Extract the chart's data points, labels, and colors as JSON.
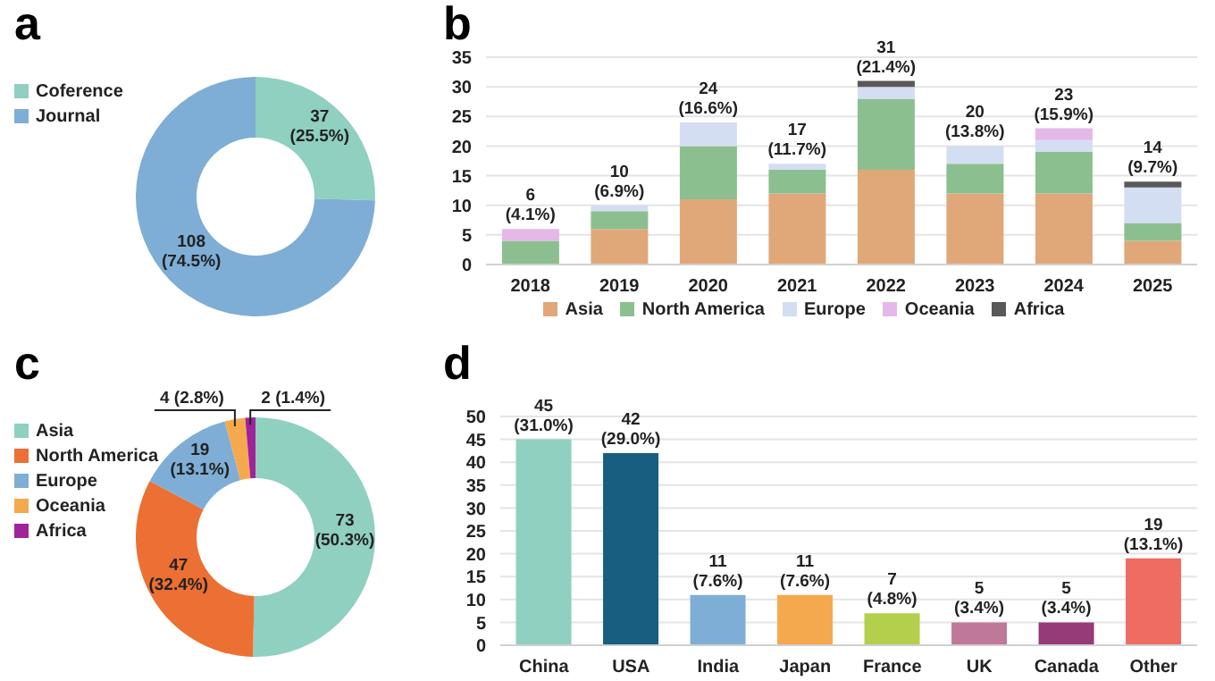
{
  "chart_data": [
    {
      "type": "donut",
      "title": "a",
      "categories": [
        "Coference",
        "Journal"
      ],
      "values": [
        37,
        108
      ],
      "colors": [
        "#8fd0c0",
        "#7eaed6"
      ],
      "value_labels": [
        "37 (25.5%)",
        "108 (74.5%)"
      ],
      "legend": "top left"
    },
    {
      "type": "bar",
      "title": "b",
      "categories": [
        "2018",
        "2019",
        "2020",
        "2021",
        "2022",
        "2023",
        "2024",
        "2025"
      ],
      "stacked": true,
      "series": [
        {
          "name": "Asia",
          "color": "#e0a878",
          "values": [
            0,
            6,
            11,
            12,
            16,
            12,
            12,
            4
          ]
        },
        {
          "name": "North America",
          "color": "#8cbf8f",
          "values": [
            4,
            3,
            9,
            4,
            12,
            5,
            7,
            3
          ]
        },
        {
          "name": "Europe",
          "color": "#d4def2",
          "values": [
            0,
            1,
            4,
            1,
            2,
            3,
            2,
            6
          ]
        },
        {
          "name": "Oceania",
          "color": "#e4b8e8",
          "values": [
            2,
            0,
            0,
            0,
            0,
            0,
            2,
            0
          ]
        },
        {
          "name": "Africa",
          "color": "#595959",
          "values": [
            0,
            0,
            0,
            0,
            1,
            0,
            0,
            1
          ]
        }
      ],
      "totals": [
        "6 (4.1%)",
        "10 (6.9%)",
        "24 (16.6%)",
        "17 (11.7%)",
        "31 (21.4%)",
        "20 (13.8%)",
        "23 (15.9%)",
        "14 (9.7%)"
      ],
      "ylim": [
        0,
        35
      ],
      "yticks": [
        0,
        5,
        10,
        15,
        20,
        25,
        30,
        35
      ],
      "grid": "y",
      "legend": "bottom"
    },
    {
      "type": "donut",
      "title": "c",
      "categories": [
        "Asia",
        "North America",
        "Europe",
        "Oceania",
        "Africa"
      ],
      "values": [
        73,
        47,
        19,
        4,
        2
      ],
      "colors": [
        "#8fd0c0",
        "#ec7033",
        "#7eaed6",
        "#f5a94e",
        "#a0239a"
      ],
      "value_labels": [
        "73 (50.3%)",
        "47 (32.4%)",
        "19 (13.1%)",
        "4 (2.8%)",
        "2 (1.4%)"
      ],
      "legend": "top left"
    },
    {
      "type": "bar",
      "title": "d",
      "categories": [
        "China",
        "USA",
        "India",
        "Japan",
        "France",
        "UK",
        "Canada",
        "Other"
      ],
      "values": [
        45,
        42,
        11,
        11,
        7,
        5,
        5,
        19
      ],
      "colors": [
        "#8fd0c0",
        "#175e80",
        "#7eaed6",
        "#f5a94e",
        "#b4cf4b",
        "#c07898",
        "#963a78",
        "#ee6c62"
      ],
      "value_labels": [
        "45 (31.0%)",
        "42 (29.0%)",
        "11 (7.6%)",
        "11 (7.6%)",
        "7 (4.8%)",
        "5 (3.4%)",
        "5 (3.4%)",
        "19 (13.1%)"
      ],
      "ylim": [
        0,
        50
      ],
      "yticks": [
        0,
        5,
        10,
        15,
        20,
        25,
        30,
        35,
        40,
        45,
        50
      ],
      "grid": "y"
    }
  ]
}
